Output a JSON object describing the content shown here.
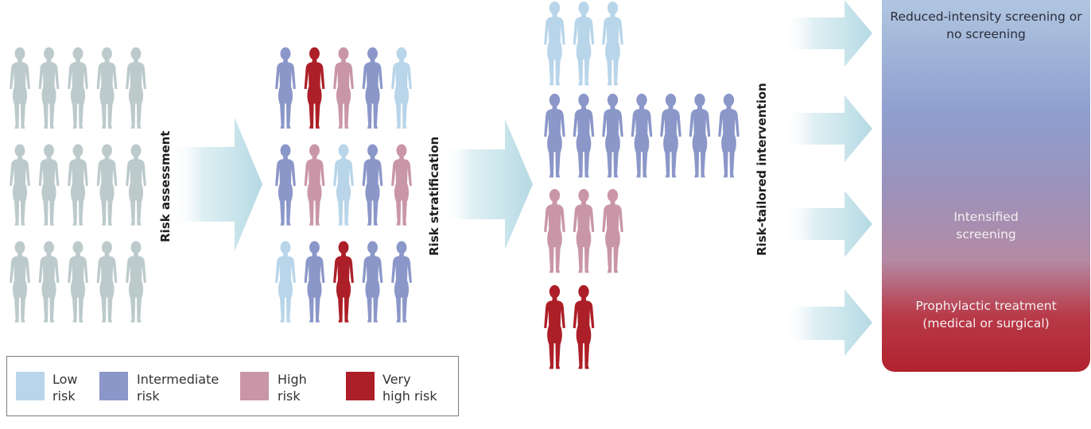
{
  "colors": {
    "grey": "#bccacb",
    "low": "#b8d5ea",
    "intermediate": "#8b97c9",
    "high": "#c996a8",
    "very_high": "#ad1f28",
    "arrow": "#c3e2ea"
  },
  "initial_population": {
    "rows": [
      [
        "grey",
        "grey",
        "grey",
        "grey",
        "grey"
      ],
      [
        "grey",
        "grey",
        "grey",
        "grey",
        "grey"
      ],
      [
        "grey",
        "grey",
        "grey",
        "grey",
        "grey"
      ]
    ]
  },
  "assessed_population": {
    "rows": [
      [
        "intermediate",
        "very_high",
        "high",
        "intermediate",
        "low"
      ],
      [
        "intermediate",
        "high",
        "low",
        "intermediate",
        "high"
      ],
      [
        "low",
        "intermediate",
        "very_high",
        "intermediate",
        "intermediate"
      ]
    ]
  },
  "stratified_groups": [
    {
      "risk": "low",
      "count": 3
    },
    {
      "risk": "intermediate",
      "count": 7
    },
    {
      "risk": "high",
      "count": 3
    },
    {
      "risk": "very_high",
      "count": 2
    }
  ],
  "steps": {
    "assessment": "Risk assessment",
    "stratification": "Risk stratification",
    "intervention": "Risk-tailored intervention"
  },
  "outcomes": {
    "reduced": "Reduced-intensity screening or no screening",
    "intensified": "Intensified screening",
    "prophylactic": "Prophylactic treatment (medical or surgical)"
  },
  "legend": [
    {
      "risk": "low",
      "label_line1": "Low",
      "label_line2": "risk"
    },
    {
      "risk": "intermediate",
      "label_line1": "Intermediate",
      "label_line2": "risk"
    },
    {
      "risk": "high",
      "label_line1": "High",
      "label_line2": "risk"
    },
    {
      "risk": "very_high",
      "label_line1": "Very",
      "label_line2": "high risk"
    }
  ]
}
